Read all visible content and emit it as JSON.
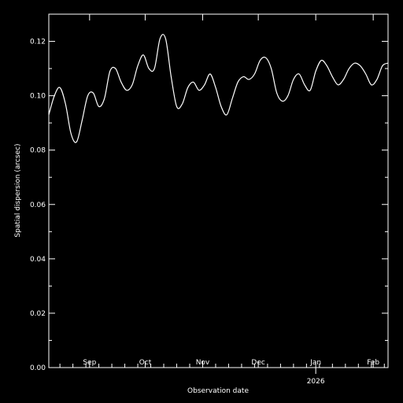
{
  "chart_data": {
    "type": "line",
    "title": "",
    "xlabel": "Observation date",
    "ylabel": "Spatial dispersion (arcsec)",
    "xlim": [
      "2025-08-10",
      "2026-02-09"
    ],
    "ylim": [
      0.0,
      0.13
    ],
    "y_ticks": [
      0.0,
      0.02,
      0.04,
      0.06,
      0.08,
      0.1,
      0.12
    ],
    "y_tick_labels": [
      "0.00",
      "0.02",
      "0.04",
      "0.06",
      "0.08",
      "0.10",
      "0.12"
    ],
    "month_ticks": [
      {
        "date": "2025-09-01",
        "label": "Sep"
      },
      {
        "date": "2025-10-01",
        "label": "Oct"
      },
      {
        "date": "2025-11-01",
        "label": "Nov"
      },
      {
        "date": "2025-12-01",
        "label": "Dec"
      },
      {
        "date": "2026-01-01",
        "label": "Jan"
      },
      {
        "date": "2026-02-01",
        "label": "Feb"
      }
    ],
    "year_tick": {
      "date": "2026-01-01",
      "label": "2026"
    },
    "grid": false,
    "colors": {
      "background": "#000000",
      "foreground": "#ffffff",
      "line": "#ffffff"
    },
    "series": [
      {
        "x": [
          "2025-08-10",
          "2025-08-13",
          "2025-08-16",
          "2025-08-19",
          "2025-08-22",
          "2025-08-25",
          "2025-08-28",
          "2025-08-31",
          "2025-09-03",
          "2025-09-06",
          "2025-09-09",
          "2025-09-12",
          "2025-09-15",
          "2025-09-18",
          "2025-09-21",
          "2025-09-24",
          "2025-09-27",
          "2025-09-30",
          "2025-10-03",
          "2025-10-06",
          "2025-10-09",
          "2025-10-12",
          "2025-10-15",
          "2025-10-18",
          "2025-10-21",
          "2025-10-24",
          "2025-10-27",
          "2025-10-30",
          "2025-11-02",
          "2025-11-05",
          "2025-11-08",
          "2025-11-11",
          "2025-11-14",
          "2025-11-17",
          "2025-11-20",
          "2025-11-23",
          "2025-11-26",
          "2025-11-29",
          "2025-12-02",
          "2025-12-05",
          "2025-12-08",
          "2025-12-11",
          "2025-12-14",
          "2025-12-17",
          "2025-12-20",
          "2025-12-23",
          "2025-12-26",
          "2025-12-29",
          "2026-01-01",
          "2026-01-04",
          "2026-01-07",
          "2026-01-10",
          "2026-01-13",
          "2026-01-16",
          "2026-01-19",
          "2026-01-22",
          "2026-01-25",
          "2026-01-28",
          "2026-01-31",
          "2026-02-03",
          "2026-02-06",
          "2026-02-09"
        ],
        "y": [
          0.093,
          0.1,
          0.103,
          0.097,
          0.086,
          0.083,
          0.091,
          0.1,
          0.101,
          0.096,
          0.099,
          0.109,
          0.11,
          0.105,
          0.102,
          0.104,
          0.111,
          0.115,
          0.11,
          0.11,
          0.121,
          0.121,
          0.107,
          0.096,
          0.097,
          0.103,
          0.105,
          0.102,
          0.104,
          0.108,
          0.103,
          0.096,
          0.093,
          0.099,
          0.105,
          0.107,
          0.106,
          0.108,
          0.113,
          0.114,
          0.11,
          0.101,
          0.098,
          0.1,
          0.106,
          0.108,
          0.104,
          0.102,
          0.109,
          0.113,
          0.111,
          0.107,
          0.104,
          0.106,
          0.11,
          0.112,
          0.111,
          0.108,
          0.104,
          0.106,
          0.111,
          0.112
        ]
      }
    ]
  }
}
